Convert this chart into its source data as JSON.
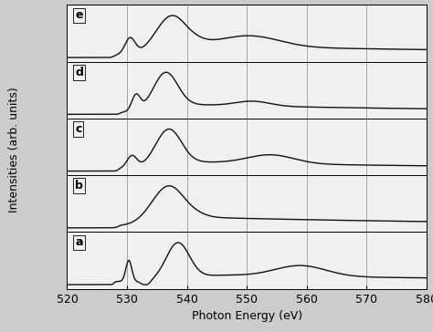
{
  "xlim": [
    520,
    580
  ],
  "xticks": [
    520,
    530,
    540,
    550,
    560,
    570,
    580
  ],
  "xlabel": "Photon Energy (eV)",
  "ylabel": "Intensities (arb. units)",
  "vlines": [
    530,
    540,
    550,
    560,
    570
  ],
  "panel_labels": [
    "e",
    "d",
    "c",
    "b",
    "a"
  ],
  "background_color": "#f0f0f0",
  "line_color": "#111111",
  "grid_color": "#999999",
  "label_fontsize": 9,
  "tick_fontsize": 9
}
